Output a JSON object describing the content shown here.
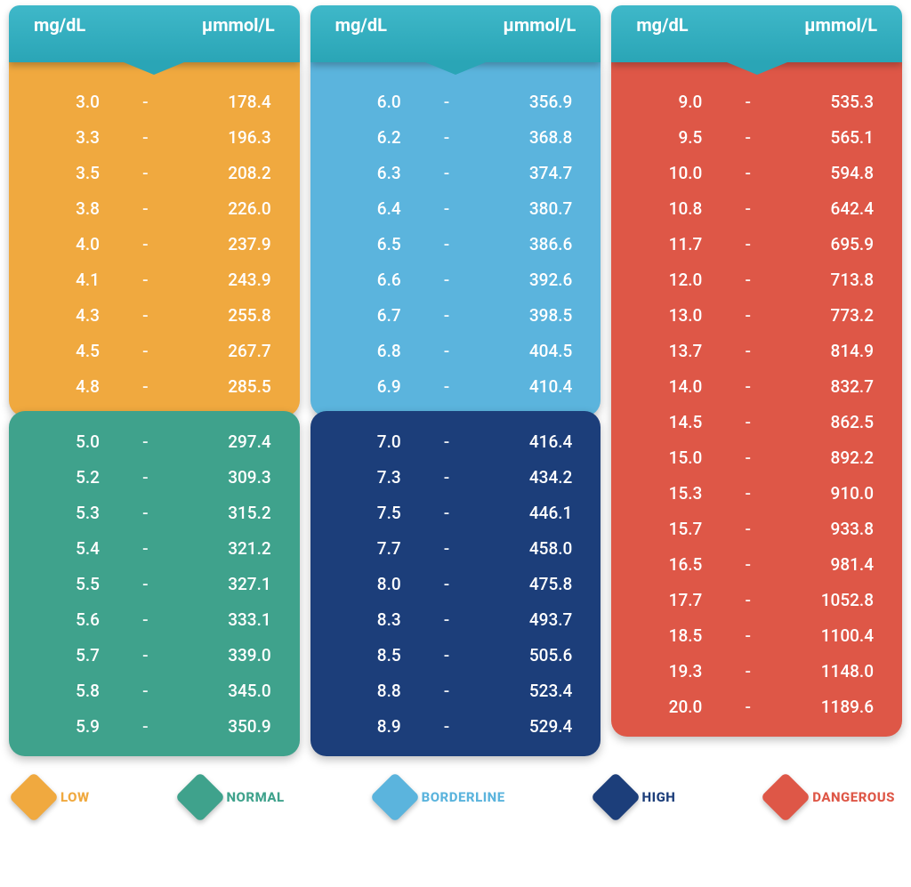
{
  "headers": {
    "left": "mg/dL",
    "right": "µmmol/L"
  },
  "header_bg": "#2aa5b6",
  "legend": [
    {
      "label": "LOW",
      "color": "#f0a93f"
    },
    {
      "label": "NORMAL",
      "color": "#3fa28c"
    },
    {
      "label": "BORDERLINE",
      "color": "#5bb4dd"
    },
    {
      "label": "HIGH",
      "color": "#1c3e7a"
    },
    {
      "label": "DANGEROUS",
      "color": "#de5747"
    }
  ],
  "columns": [
    {
      "sections": [
        {
          "color": "#f0a93f",
          "rows": [
            [
              "3.0",
              "178.4"
            ],
            [
              "3.3",
              "196.3"
            ],
            [
              "3.5",
              "208.2"
            ],
            [
              "3.8",
              "226.0"
            ],
            [
              "4.0",
              "237.9"
            ],
            [
              "4.1",
              "243.9"
            ],
            [
              "4.3",
              "255.8"
            ],
            [
              "4.5",
              "267.7"
            ],
            [
              "4.8",
              "285.5"
            ]
          ]
        },
        {
          "color": "#3fa28c",
          "rows": [
            [
              "5.0",
              "297.4"
            ],
            [
              "5.2",
              "309.3"
            ],
            [
              "5.3",
              "315.2"
            ],
            [
              "5.4",
              "321.2"
            ],
            [
              "5.5",
              "327.1"
            ],
            [
              "5.6",
              "333.1"
            ],
            [
              "5.7",
              "339.0"
            ],
            [
              "5.8",
              "345.0"
            ],
            [
              "5.9",
              "350.9"
            ]
          ]
        }
      ]
    },
    {
      "sections": [
        {
          "color": "#5bb4dd",
          "rows": [
            [
              "6.0",
              "356.9"
            ],
            [
              "6.2",
              "368.8"
            ],
            [
              "6.3",
              "374.7"
            ],
            [
              "6.4",
              "380.7"
            ],
            [
              "6.5",
              "386.6"
            ],
            [
              "6.6",
              "392.6"
            ],
            [
              "6.7",
              "398.5"
            ],
            [
              "6.8",
              "404.5"
            ],
            [
              "6.9",
              "410.4"
            ]
          ]
        },
        {
          "color": "#1c3e7a",
          "rows": [
            [
              "7.0",
              "416.4"
            ],
            [
              "7.3",
              "434.2"
            ],
            [
              "7.5",
              "446.1"
            ],
            [
              "7.7",
              "458.0"
            ],
            [
              "8.0",
              "475.8"
            ],
            [
              "8.3",
              "493.7"
            ],
            [
              "8.5",
              "505.6"
            ],
            [
              "8.8",
              "523.4"
            ],
            [
              "8.9",
              "529.4"
            ]
          ]
        }
      ]
    },
    {
      "sections": [
        {
          "color": "#de5747",
          "rows": [
            [
              "9.0",
              "535.3"
            ],
            [
              "9.5",
              "565.1"
            ],
            [
              "10.0",
              "594.8"
            ],
            [
              "10.8",
              "642.4"
            ],
            [
              "11.7",
              "695.9"
            ],
            [
              "12.0",
              "713.8"
            ],
            [
              "13.0",
              "773.2"
            ],
            [
              "13.7",
              "814.9"
            ],
            [
              "14.0",
              "832.7"
            ],
            [
              "14.5",
              "862.5"
            ],
            [
              "15.0",
              "892.2"
            ],
            [
              "15.3",
              "910.0"
            ],
            [
              "15.7",
              "933.8"
            ],
            [
              "16.5",
              "981.4"
            ],
            [
              "17.7",
              "1052.8"
            ],
            [
              "18.5",
              "1100.4"
            ],
            [
              "19.3",
              "1148.0"
            ],
            [
              "20.0",
              "1189.6"
            ]
          ]
        }
      ]
    }
  ]
}
